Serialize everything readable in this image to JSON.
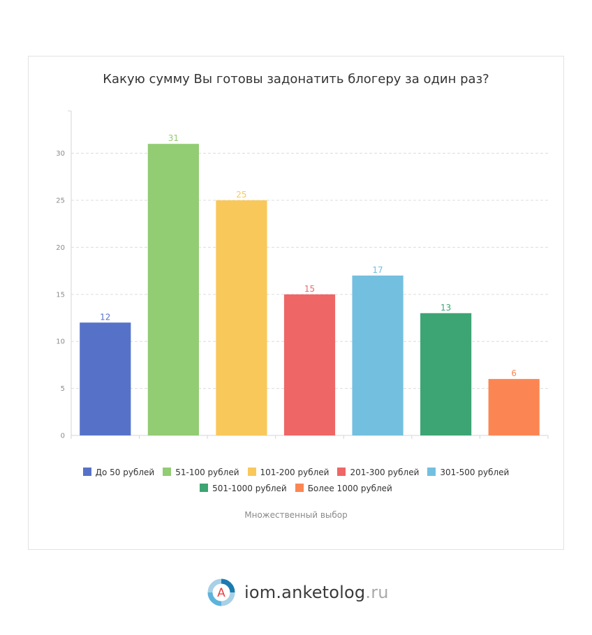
{
  "chart_data": {
    "type": "bar",
    "title": "Какую сумму Вы готовы задонатить блогеру за один раз?",
    "subtitle": "Множественный выбор",
    "categories": [
      "До 50 рублей",
      "51-100 рублей",
      "101-200 рублей",
      "201-300 рублей",
      "301-500 рублей",
      "501-1000 рублей",
      "Более 1000 рублей"
    ],
    "values": [
      12,
      31,
      25,
      15,
      17,
      13,
      6
    ],
    "colors": [
      "#5672c8",
      "#92cc73",
      "#f9c85a",
      "#ee6666",
      "#73bfdf",
      "#3ca573",
      "#fc8653"
    ],
    "ylim": [
      0,
      34.5
    ],
    "yticks": [
      0,
      5,
      10,
      15,
      20,
      25,
      30
    ],
    "grid": true,
    "legend_position": "bottom"
  },
  "brand": {
    "logo_letter": "A",
    "name": "iom.anketolog",
    "tld": ".ru"
  }
}
